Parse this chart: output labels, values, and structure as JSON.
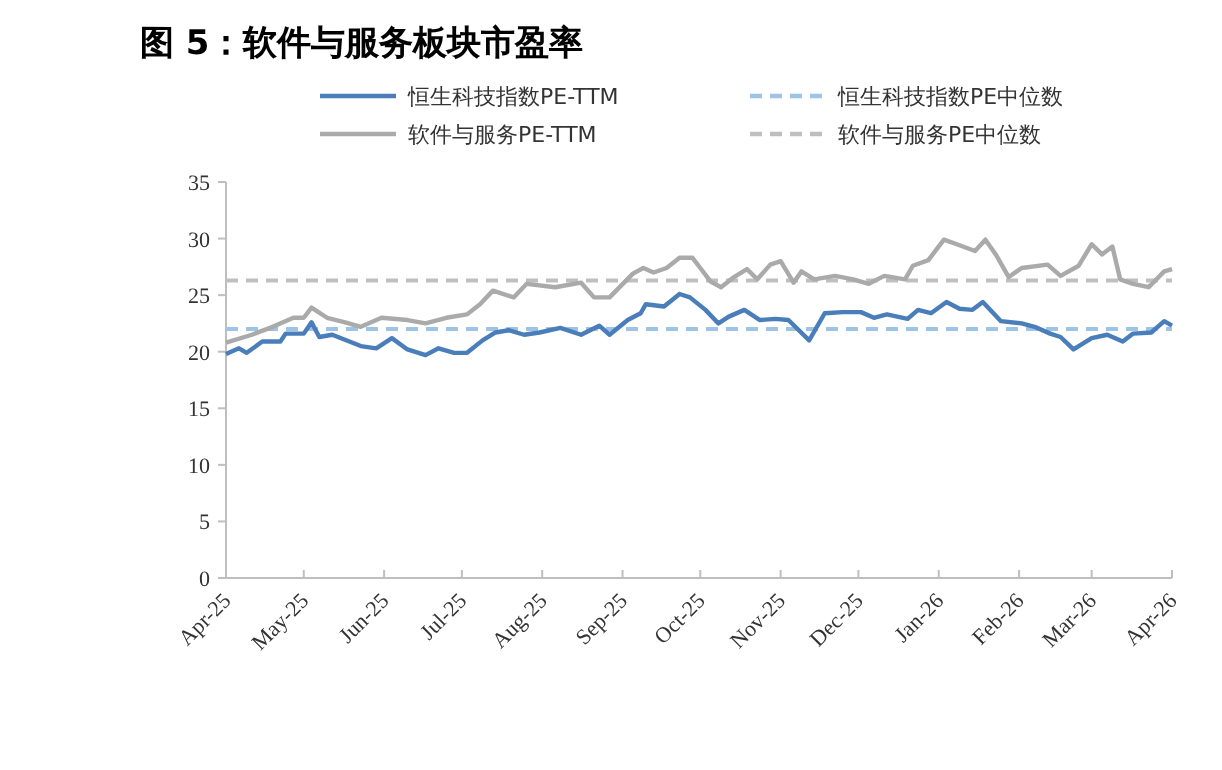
{
  "chart_data": {
    "type": "line",
    "title": "图 5：软件与服务板块市盈率",
    "xlim": [
      "2025-04-01",
      "2026-04-01"
    ],
    "xticks": [
      {
        "value": "2025-04-01",
        "label": "Apr-25"
      },
      {
        "value": "2025-05-01",
        "label": "May-25"
      },
      {
        "value": "2025-06-01",
        "label": "Jun-25"
      },
      {
        "value": "2025-07-01",
        "label": "Jul-25"
      },
      {
        "value": "2025-08-01",
        "label": "Aug-25"
      },
      {
        "value": "2025-09-01",
        "label": "Sep-25"
      },
      {
        "value": "2025-10-01",
        "label": "Oct-25"
      },
      {
        "value": "2025-11-01",
        "label": "Nov-25"
      },
      {
        "value": "2025-12-01",
        "label": "Dec-25"
      },
      {
        "value": "2026-01-01",
        "label": "Jan-26"
      },
      {
        "value": "2026-02-01",
        "label": "Feb-26"
      },
      {
        "value": "2026-03-01",
        "label": "Mar-26"
      },
      {
        "value": "2026-04-01",
        "label": "Apr-26"
      }
    ],
    "ylim": [
      0,
      35
    ],
    "yticks": [
      0,
      5,
      10,
      15,
      20,
      25,
      30,
      35
    ],
    "grid": false,
    "legend": "top",
    "marker": "none",
    "line_style": "solid",
    "series": [
      {
        "name": "恒生科技指数PE-TTM",
        "color": "#4a7ebb",
        "x": [
          "2025-04-01",
          "2025-04-06",
          "2025-04-09",
          "2025-04-15",
          "2025-04-22",
          "2025-04-24",
          "2025-05-01",
          "2025-05-04",
          "2025-05-07",
          "2025-05-12",
          "2025-05-23",
          "2025-05-29",
          "2025-06-04",
          "2025-06-10",
          "2025-06-17",
          "2025-06-22",
          "2025-06-28",
          "2025-07-03",
          "2025-07-09",
          "2025-07-14",
          "2025-07-19",
          "2025-07-25",
          "2025-07-31",
          "2025-08-08",
          "2025-08-16",
          "2025-08-23",
          "2025-08-27",
          "2025-09-03",
          "2025-09-08",
          "2025-09-10",
          "2025-09-17",
          "2025-09-23",
          "2025-09-27",
          "2025-10-03",
          "2025-10-08",
          "2025-10-12",
          "2025-10-18",
          "2025-10-24",
          "2025-10-30",
          "2025-11-04",
          "2025-11-12",
          "2025-11-18",
          "2025-11-25",
          "2025-12-02",
          "2025-12-07",
          "2025-12-12",
          "2025-12-20",
          "2025-12-24",
          "2025-12-29",
          "2026-01-04",
          "2026-01-09",
          "2026-01-14",
          "2026-01-18",
          "2026-01-25",
          "2026-02-02",
          "2026-02-07",
          "2026-02-13",
          "2026-02-17",
          "2026-02-22",
          "2026-03-01",
          "2026-03-07",
          "2026-03-13",
          "2026-03-17",
          "2026-03-24",
          "2026-03-29",
          "2026-04-01"
        ],
        "values": [
          19.8,
          20.3,
          19.9,
          20.9,
          20.9,
          21.6,
          21.6,
          22.6,
          21.3,
          21.5,
          20.5,
          20.3,
          21.2,
          20.2,
          19.7,
          20.3,
          19.9,
          19.9,
          21.0,
          21.7,
          21.9,
          21.5,
          21.7,
          22.1,
          21.5,
          22.3,
          21.5,
          22.8,
          23.4,
          24.2,
          24.0,
          25.1,
          24.8,
          23.7,
          22.5,
          23.1,
          23.7,
          22.8,
          22.9,
          22.8,
          21.0,
          23.4,
          23.5,
          23.5,
          23.0,
          23.3,
          22.9,
          23.7,
          23.4,
          24.4,
          23.8,
          23.7,
          24.4,
          22.7,
          22.5,
          22.2,
          21.6,
          21.3,
          20.2,
          21.2,
          21.5,
          20.9,
          21.6,
          21.7,
          22.7,
          22.3
        ]
      },
      {
        "name": "软件与服务PE-TTM",
        "color": "#aaaaaa",
        "x": [
          "2025-04-01",
          "2025-04-11",
          "2025-04-19",
          "2025-04-27",
          "2025-05-01",
          "2025-05-04",
          "2025-05-10",
          "2025-05-17",
          "2025-05-23",
          "2025-05-31",
          "2025-06-10",
          "2025-06-17",
          "2025-06-25",
          "2025-07-03",
          "2025-07-08",
          "2025-07-13",
          "2025-07-21",
          "2025-07-26",
          "2025-08-06",
          "2025-08-16",
          "2025-08-21",
          "2025-08-27",
          "2025-09-05",
          "2025-09-09",
          "2025-09-13",
          "2025-09-18",
          "2025-09-23",
          "2025-09-28",
          "2025-10-01",
          "2025-10-05",
          "2025-10-09",
          "2025-10-14",
          "2025-10-19",
          "2025-10-23",
          "2025-10-28",
          "2025-11-01",
          "2025-11-06",
          "2025-11-09",
          "2025-11-14",
          "2025-11-22",
          "2025-11-29",
          "2025-12-05",
          "2025-12-11",
          "2025-12-19",
          "2025-12-22",
          "2025-12-28",
          "2026-01-03",
          "2026-01-08",
          "2026-01-15",
          "2026-01-19",
          "2026-01-23",
          "2026-01-28",
          "2026-02-02",
          "2026-02-12",
          "2026-02-17",
          "2026-02-24",
          "2026-03-01",
          "2026-03-05",
          "2026-03-09",
          "2026-03-12",
          "2026-03-17",
          "2026-03-23",
          "2026-03-29",
          "2026-04-01"
        ],
        "values": [
          20.8,
          21.5,
          22.2,
          23.0,
          23.0,
          23.9,
          23.0,
          22.6,
          22.2,
          23.0,
          22.8,
          22.5,
          23.0,
          23.3,
          24.2,
          25.4,
          24.8,
          26.0,
          25.7,
          26.1,
          24.8,
          24.8,
          26.9,
          27.4,
          27.0,
          27.4,
          28.3,
          28.3,
          27.4,
          26.2,
          25.7,
          26.6,
          27.3,
          26.4,
          27.7,
          28.0,
          26.1,
          27.1,
          26.4,
          26.7,
          26.4,
          26.0,
          26.7,
          26.4,
          27.6,
          28.1,
          29.9,
          29.5,
          28.9,
          29.9,
          28.6,
          26.6,
          27.4,
          27.7,
          26.7,
          27.6,
          29.5,
          28.6,
          29.3,
          26.4,
          26.0,
          25.7,
          27.1,
          27.3
        ]
      }
    ],
    "ref_lines": [
      {
        "axis": "y",
        "value": 22.0,
        "label": "恒生科技指数PE中位数",
        "color": "#9dc3e6",
        "line_style": "dashed"
      },
      {
        "axis": "y",
        "value": 26.3,
        "label": "软件与服务PE中位数",
        "color": "#bfbfbf",
        "line_style": "dashed"
      }
    ]
  }
}
